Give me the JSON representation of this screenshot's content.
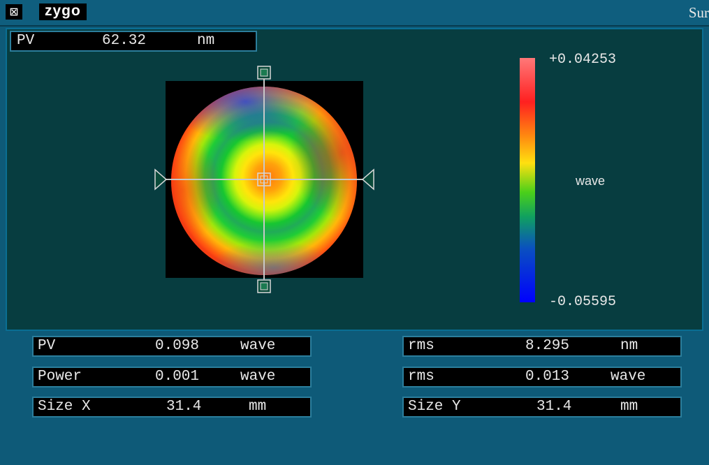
{
  "titlebar": {
    "window_menu_icon": "window-menu-icon",
    "logo": "zygo",
    "title": "Sur"
  },
  "surface_plot": {
    "pv_label": "PV",
    "pv_value": "62.32",
    "pv_unit": "nm",
    "colorbar": {
      "max": "+0.04253",
      "min": "-0.05595",
      "unit": "wave"
    }
  },
  "results_left": [
    {
      "label": "PV",
      "value": "0.098",
      "unit": "wave"
    },
    {
      "label": "Power",
      "value": "0.001",
      "unit": "wave"
    },
    {
      "label": "Size X",
      "value": "31.4",
      "unit": "mm"
    }
  ],
  "results_right": [
    {
      "label": "rms",
      "value": "8.295",
      "unit": "nm"
    },
    {
      "label": "rms",
      "value": "0.013",
      "unit": "wave"
    },
    {
      "label": "Size Y",
      "value": "31.4",
      "unit": "mm"
    }
  ]
}
